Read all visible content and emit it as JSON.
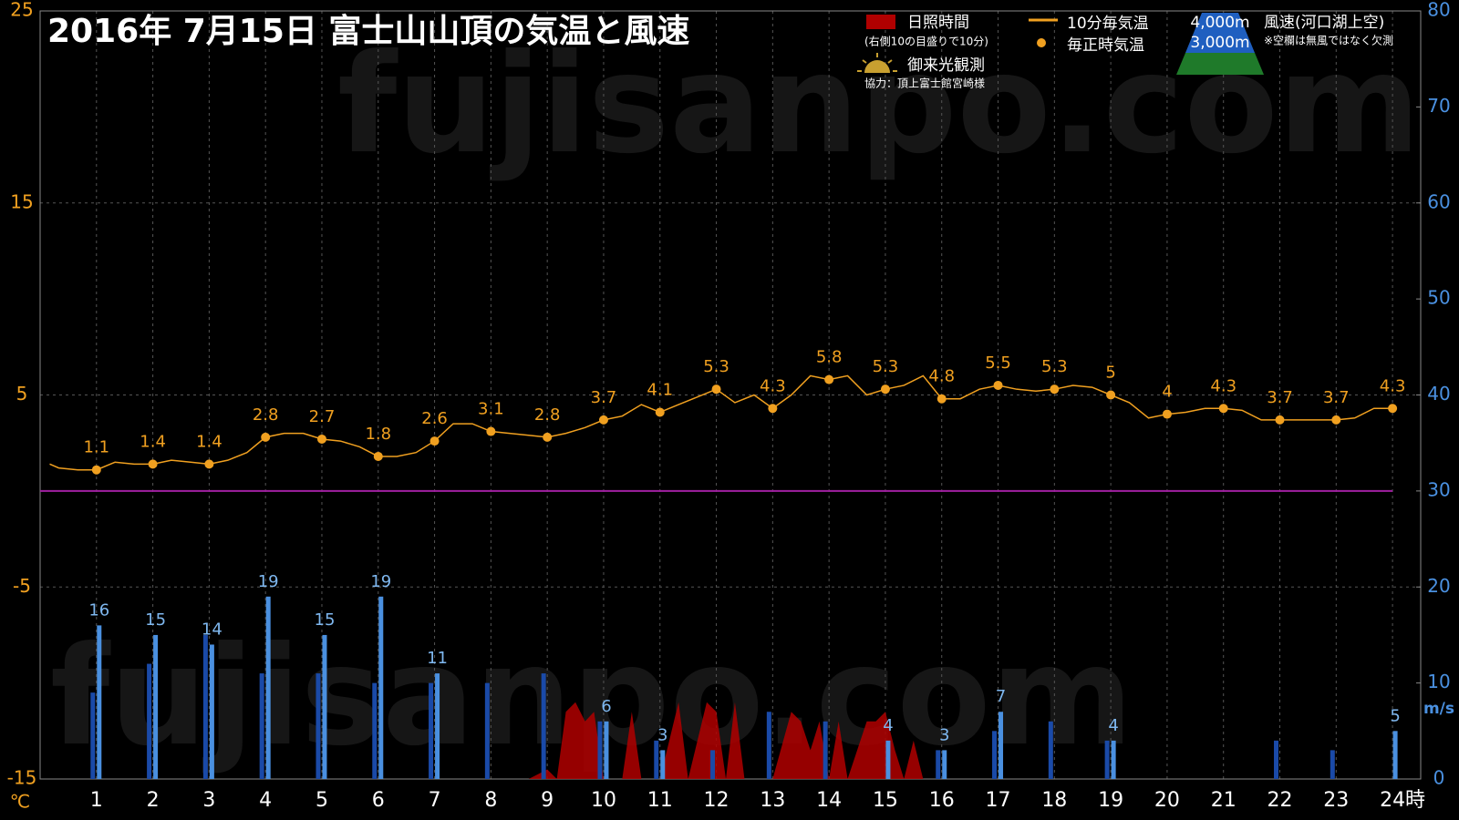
{
  "chart_data": {
    "type": "combo",
    "title": "2016年  7月15日   富士山山頂の気温と風速",
    "watermark": "fujisanpo.com",
    "xlabel": "時",
    "ylabel": "℃",
    "y2label": "m/s",
    "xlim": [
      0,
      24.5
    ],
    "xticks": [
      1,
      2,
      3,
      4,
      5,
      6,
      7,
      8,
      9,
      10,
      11,
      12,
      13,
      14,
      15,
      16,
      17,
      18,
      19,
      20,
      21,
      22,
      23,
      24
    ],
    "ylim": [
      -15,
      25
    ],
    "yticks": [
      -15,
      -5,
      5,
      15,
      25
    ],
    "y2lim": [
      0,
      80
    ],
    "y2ticks": [
      0,
      10,
      20,
      30,
      40,
      50,
      60,
      70,
      80
    ],
    "grid": true,
    "zero_line": {
      "value": 0,
      "color": "#a020a0"
    },
    "legend_notes": {
      "sunshine_note": "(右側10の目盛りで10分)",
      "wind_title": "風速(河口湖上空)",
      "wind_note": "※空欄は無風ではなく欠測",
      "sunrise": "御来光観測",
      "credit": "協力：頂上富士館宮崎様"
    },
    "series": [
      {
        "name": "日照時間",
        "type": "area",
        "axis": "y2",
        "color": "#b00000",
        "x": [
          8.67,
          9,
          9.17,
          9.33,
          9.5,
          9.67,
          9.83,
          10,
          10.33,
          10.5,
          10.67,
          11,
          11.33,
          11.5,
          11.83,
          12,
          12.17,
          12.33,
          12.5,
          13,
          13.33,
          13.5,
          13.67,
          13.83,
          14,
          14.17,
          14.33,
          14.5,
          14.67,
          14.83,
          15,
          15.17,
          15.33,
          15.5,
          15.67
        ],
        "values": [
          0,
          1,
          0,
          7,
          8,
          6,
          7,
          0,
          0,
          7,
          0,
          0,
          8,
          0,
          8,
          7,
          0,
          8,
          0,
          0,
          7,
          6,
          3,
          6,
          0,
          6,
          0,
          3,
          6,
          6,
          7,
          3,
          0,
          4,
          0
        ]
      },
      {
        "name": "10分毎気温",
        "type": "line",
        "color": "#f0a020",
        "x": [
          0.17,
          0.33,
          0.67,
          1,
          1.33,
          1.67,
          2,
          2.33,
          2.67,
          3,
          3.33,
          3.67,
          4,
          4.33,
          4.67,
          5,
          5.33,
          5.67,
          6,
          6.33,
          6.67,
          7,
          7.33,
          7.67,
          8,
          8.33,
          8.67,
          9,
          9.33,
          9.67,
          10,
          10.33,
          10.67,
          11,
          11.33,
          11.67,
          12,
          12.33,
          12.67,
          13,
          13.33,
          13.67,
          14,
          14.33,
          14.67,
          15,
          15.33,
          15.67,
          16,
          16.33,
          16.67,
          17,
          17.33,
          17.67,
          18,
          18.33,
          18.67,
          19,
          19.33,
          19.67,
          20,
          20.33,
          20.67,
          21,
          21.33,
          21.67,
          22,
          22.33,
          22.67,
          23,
          23.33,
          23.67,
          24
        ],
        "values": [
          1.4,
          1.2,
          1.1,
          1.1,
          1.5,
          1.4,
          1.4,
          1.6,
          1.5,
          1.4,
          1.6,
          2.0,
          2.8,
          3.0,
          3.0,
          2.7,
          2.6,
          2.3,
          1.8,
          1.8,
          2.0,
          2.6,
          3.5,
          3.5,
          3.1,
          3.0,
          2.9,
          2.8,
          3.0,
          3.3,
          3.7,
          3.9,
          4.5,
          4.1,
          4.5,
          4.9,
          5.3,
          4.6,
          5.0,
          4.3,
          5.0,
          6.0,
          5.8,
          6.0,
          5.0,
          5.3,
          5.5,
          6.0,
          4.8,
          4.8,
          5.3,
          5.5,
          5.3,
          5.2,
          5.3,
          5.5,
          5.4,
          5.0,
          4.6,
          3.8,
          4.0,
          4.1,
          4.3,
          4.3,
          4.2,
          3.7,
          3.7,
          3.7,
          3.7,
          3.7,
          3.8,
          4.3,
          4.3
        ]
      },
      {
        "name": "毎正時気温",
        "type": "scatter",
        "color": "#f0a020",
        "x": [
          1,
          2,
          3,
          4,
          5,
          6,
          7,
          8,
          9,
          10,
          11,
          12,
          13,
          14,
          15,
          16,
          17,
          18,
          19,
          20,
          21,
          22,
          23,
          24
        ],
        "values": [
          1.1,
          1.4,
          1.4,
          2.8,
          2.7,
          1.8,
          2.6,
          3.1,
          2.8,
          3.7,
          4.1,
          5.3,
          4.3,
          5.8,
          5.3,
          4.8,
          5.5,
          5.3,
          5,
          4,
          4.3,
          3.7,
          3.7,
          4.3
        ]
      },
      {
        "name": "4,000m",
        "type": "bar",
        "axis": "y2",
        "color": "#4a90e0",
        "x": [
          1,
          2,
          3,
          4,
          5,
          6,
          7,
          8,
          9,
          10,
          11,
          12,
          13,
          14,
          15,
          16,
          17,
          18,
          19,
          20,
          21,
          22,
          23,
          24
        ],
        "values": [
          16,
          15,
          14,
          19,
          15,
          19,
          11,
          null,
          null,
          6,
          3,
          null,
          null,
          null,
          4,
          3,
          7,
          null,
          4,
          null,
          null,
          null,
          null,
          5
        ]
      },
      {
        "name": "3,000m",
        "type": "bar",
        "axis": "y2",
        "color": "#1a4aa8",
        "x": [
          1,
          2,
          3,
          4,
          5,
          6,
          7,
          8,
          9,
          10,
          11,
          12,
          13,
          14,
          15,
          16,
          17,
          18,
          19,
          20,
          21,
          22,
          23,
          24
        ],
        "values": [
          9,
          12,
          15,
          11,
          11,
          10,
          10,
          10,
          11,
          6,
          4,
          3,
          7,
          6,
          null,
          3,
          5,
          6,
          4,
          null,
          null,
          4,
          3,
          null
        ]
      }
    ]
  }
}
